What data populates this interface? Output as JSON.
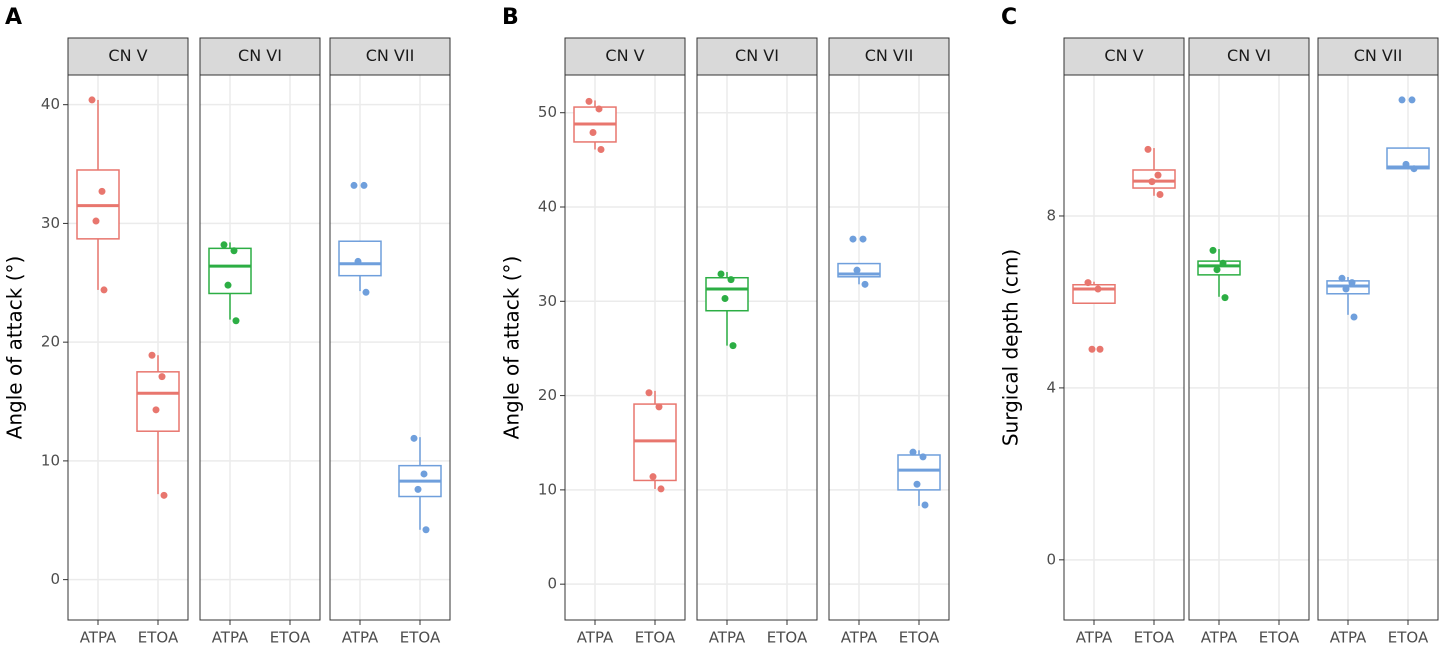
{
  "chart_data": [
    {
      "type": "box",
      "panel_label": "A",
      "ylabel": "Angle of attack (°)",
      "ylim": [
        -3.4,
        42.5
      ],
      "yticks": [
        0,
        10,
        20,
        30,
        40
      ],
      "grid": true,
      "facets": [
        {
          "name": "CN V",
          "color": "#e8766e",
          "categories": [
            "ATPA",
            "ETOA"
          ],
          "boxes": [
            {
              "min": 24.4,
              "q1": 28.7,
              "median": 31.5,
              "q3": 34.5,
              "max": 40.4,
              "points": [
                40.4,
                32.7,
                30.2,
                24.4
              ]
            },
            {
              "min": 7.2,
              "q1": 12.5,
              "median": 15.7,
              "q3": 17.5,
              "max": 18.9,
              "points": [
                18.9,
                17.1,
                14.3,
                7.1
              ]
            }
          ]
        },
        {
          "name": "CN VI",
          "color": "#2cae44",
          "categories": [
            "ATPA",
            "ETOA"
          ],
          "boxes": [
            {
              "min": 21.9,
              "q1": 24.1,
              "median": 26.4,
              "q3": 27.9,
              "max": 28.4,
              "points": [
                28.2,
                27.7,
                24.8,
                21.8
              ]
            },
            null
          ]
        },
        {
          "name": "CN VII",
          "color": "#6f9fdc",
          "categories": [
            "ATPA",
            "ETOA"
          ],
          "boxes": [
            {
              "min": 24.3,
              "q1": 25.6,
              "median": 26.6,
              "q3": 28.5,
              "max": 28.5,
              "points": [
                33.2,
                33.2,
                26.8,
                24.2
              ]
            },
            {
              "min": 4.2,
              "q1": 7.0,
              "median": 8.3,
              "q3": 9.6,
              "max": 12.0,
              "points": [
                11.9,
                8.9,
                7.6,
                4.2
              ]
            }
          ]
        }
      ]
    },
    {
      "type": "box",
      "panel_label": "B",
      "ylabel": "Angle of attack (°)",
      "ylim": [
        -3.8,
        54
      ],
      "yticks": [
        0,
        10,
        20,
        30,
        40,
        50
      ],
      "grid": true,
      "facets": [
        {
          "name": "CN V",
          "color": "#e8766e",
          "categories": [
            "ATPA",
            "ETOA"
          ],
          "boxes": [
            {
              "min": 46.1,
              "q1": 46.9,
              "median": 48.8,
              "q3": 50.6,
              "max": 51.3,
              "points": [
                51.2,
                50.4,
                47.9,
                46.1
              ]
            },
            {
              "min": 10.1,
              "q1": 11.0,
              "median": 15.2,
              "q3": 19.1,
              "max": 20.5,
              "points": [
                20.3,
                18.8,
                11.4,
                10.1
              ]
            }
          ]
        },
        {
          "name": "CN VI",
          "color": "#2cae44",
          "categories": [
            "ATPA",
            "ETOA"
          ],
          "boxes": [
            {
              "min": 25.3,
              "q1": 29.0,
              "median": 31.3,
              "q3": 32.5,
              "max": 33.1,
              "points": [
                32.9,
                32.3,
                30.3,
                25.3
              ]
            },
            null
          ]
        },
        {
          "name": "CN VII",
          "color": "#6f9fdc",
          "categories": [
            "ATPA",
            "ETOA"
          ],
          "boxes": [
            {
              "min": 31.8,
              "q1": 32.6,
              "median": 32.9,
              "q3": 34.0,
              "max": 34.0,
              "points": [
                36.6,
                36.6,
                33.3,
                31.8
              ]
            },
            {
              "min": 8.3,
              "q1": 10.0,
              "median": 12.1,
              "q3": 13.7,
              "max": 14.2,
              "points": [
                14.0,
                13.5,
                10.6,
                8.4
              ]
            }
          ]
        }
      ]
    },
    {
      "type": "box",
      "panel_label": "C",
      "ylabel": "Surgical depth (cm)",
      "ylim": [
        -1.4,
        11.28
      ],
      "yticks": [
        0,
        4,
        8
      ],
      "grid": true,
      "facets": [
        {
          "name": "CN V",
          "color": "#e8766e",
          "categories": [
            "ATPA",
            "ETOA"
          ],
          "boxes": [
            {
              "min": 5.97,
              "q1": 5.97,
              "median": 6.3,
              "q3": 6.4,
              "max": 6.47,
              "points": [
                6.45,
                6.3,
                4.9,
                4.9
              ]
            },
            {
              "min": 8.47,
              "q1": 8.65,
              "median": 8.81,
              "q3": 9.07,
              "max": 9.58,
              "points": [
                9.55,
                8.95,
                8.8,
                8.5
              ]
            }
          ]
        },
        {
          "name": "CN VI",
          "color": "#2cae44",
          "categories": [
            "ATPA",
            "ETOA"
          ],
          "boxes": [
            {
              "min": 6.12,
              "q1": 6.63,
              "median": 6.84,
              "q3": 6.95,
              "max": 7.23,
              "points": [
                7.2,
                6.9,
                6.75,
                6.1
              ]
            },
            null
          ]
        },
        {
          "name": "CN VII",
          "color": "#6f9fdc",
          "categories": [
            "ATPA",
            "ETOA"
          ],
          "boxes": [
            {
              "min": 5.7,
              "q1": 6.19,
              "median": 6.37,
              "q3": 6.49,
              "max": 6.58,
              "points": [
                6.55,
                6.45,
                6.3,
                5.65
              ]
            },
            {
              "min": 9.1,
              "q1": 9.1,
              "median": 9.14,
              "q3": 9.58,
              "max": 9.58,
              "points": [
                10.7,
                10.7,
                9.2,
                9.1
              ]
            }
          ]
        }
      ]
    }
  ]
}
